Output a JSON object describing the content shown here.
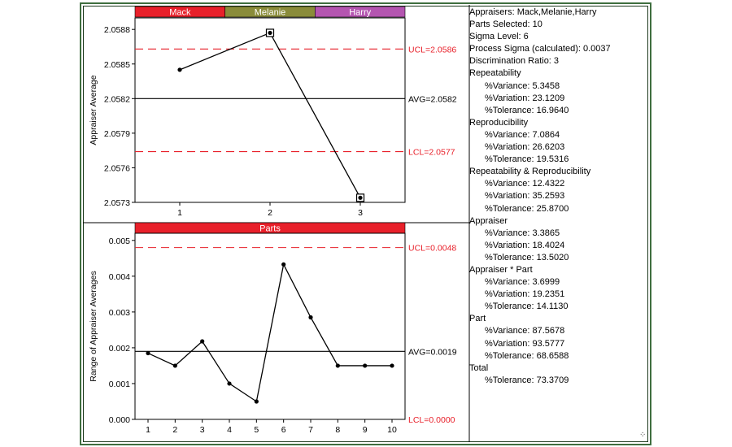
{
  "chart_data": [
    {
      "type": "line",
      "ylabel": "Appraiser Average",
      "xlabel": "",
      "categories": [
        "1",
        "2",
        "3"
      ],
      "header_labels": [
        {
          "label": "Mack",
          "color": "#e8202a"
        },
        {
          "label": "Melanie",
          "color": "#8a8c3a"
        },
        {
          "label": "Harry",
          "color": "#b455b0"
        }
      ],
      "series": [
        {
          "values": [
            2.05845,
            2.05877,
            2.05734
          ]
        }
      ],
      "marked_points": [
        1,
        2
      ],
      "ylim": [
        2.0573,
        2.0589
      ],
      "yticks": [
        "2.0588",
        "2.0585",
        "2.0582",
        "2.0579",
        "2.0576",
        "2.0573"
      ],
      "ytick_values": [
        2.0588,
        2.0585,
        2.0582,
        2.0579,
        2.0576,
        2.0573
      ],
      "ucl": {
        "value": 2.05863,
        "label": "UCL=2.0586"
      },
      "avg": {
        "value": 2.0582,
        "label": "AVG=2.0582"
      },
      "lcl": {
        "value": 2.05774,
        "label": "LCL=2.0577"
      },
      "grid": false
    },
    {
      "type": "line",
      "ylabel": "Range of Appraiser Averages",
      "xlabel": "",
      "categories": [
        "1",
        "2",
        "3",
        "4",
        "5",
        "6",
        "7",
        "8",
        "9",
        "10"
      ],
      "header_labels": [
        {
          "label": "Parts",
          "color": "#e8202a"
        }
      ],
      "series": [
        {
          "values": [
            0.00185,
            0.0015,
            0.00218,
            0.001,
            0.0005,
            0.00433,
            0.00285,
            0.0015,
            0.0015,
            0.0015
          ]
        }
      ],
      "marked_points": [],
      "ylim": [
        0,
        0.0052
      ],
      "yticks": [
        "0.005",
        "0.004",
        "0.003",
        "0.002",
        "0.001",
        "0.000"
      ],
      "ytick_values": [
        0.005,
        0.004,
        0.003,
        0.002,
        0.001,
        0.0
      ],
      "ucl": {
        "value": 0.0048,
        "label": "UCL=0.0048"
      },
      "avg": {
        "value": 0.0019,
        "label": "AVG=0.0019"
      },
      "lcl": {
        "value": 0.0,
        "label": "LCL=0.0000"
      },
      "grid": false
    }
  ],
  "colors": {
    "line": "#000000",
    "control_limit": "#e8202a",
    "frame": "#3f6e3f"
  },
  "stats": {
    "rows": [
      {
        "kind": "row",
        "text": "Appraisers:  Mack,Melanie,Harry"
      },
      {
        "kind": "row",
        "text": "Parts Selected:  10"
      },
      {
        "kind": "row",
        "text": "Sigma Level:  6"
      },
      {
        "kind": "row",
        "text": "Process Sigma (calculated):  0.0037"
      },
      {
        "kind": "row",
        "text": "Discrimination Ratio:  3"
      },
      {
        "kind": "sec",
        "text": "Repeatability"
      },
      {
        "kind": "sub",
        "text": "%Variance:  5.3458"
      },
      {
        "kind": "sub",
        "text": "%Variation:  23.1209"
      },
      {
        "kind": "sub",
        "text": "%Tolerance:  16.9640"
      },
      {
        "kind": "sec",
        "text": "Reproducibility"
      },
      {
        "kind": "sub",
        "text": "%Variance:  7.0864"
      },
      {
        "kind": "sub",
        "text": "%Variation:  26.6203"
      },
      {
        "kind": "sub",
        "text": "%Tolerance:  19.5316"
      },
      {
        "kind": "sec",
        "text": "Repeatability & Reproducibility"
      },
      {
        "kind": "sub",
        "text": "%Variance:  12.4322"
      },
      {
        "kind": "sub",
        "text": "%Variation:  35.2593"
      },
      {
        "kind": "sub",
        "text": "%Tolerance:  25.8700"
      },
      {
        "kind": "sec",
        "text": "Appraiser"
      },
      {
        "kind": "sub",
        "text": "%Variance:  3.3865"
      },
      {
        "kind": "sub",
        "text": "%Variation:  18.4024"
      },
      {
        "kind": "sub",
        "text": "%Tolerance:  13.5020"
      },
      {
        "kind": "sec",
        "text": "Appraiser * Part"
      },
      {
        "kind": "sub",
        "text": "%Variance:  3.6999"
      },
      {
        "kind": "sub",
        "text": "%Variation:  19.2351"
      },
      {
        "kind": "sub",
        "text": "%Tolerance:  14.1130"
      },
      {
        "kind": "sec",
        "text": "Part"
      },
      {
        "kind": "sub",
        "text": "%Variance:  87.5678"
      },
      {
        "kind": "sub",
        "text": "%Variation:  93.5777"
      },
      {
        "kind": "sub",
        "text": "%Tolerance:  68.6588"
      },
      {
        "kind": "sec",
        "text": "Total"
      },
      {
        "kind": "sub",
        "text": "%Tolerance:  73.3709"
      }
    ]
  },
  "resize_grip_icon": "resize-grip-icon"
}
